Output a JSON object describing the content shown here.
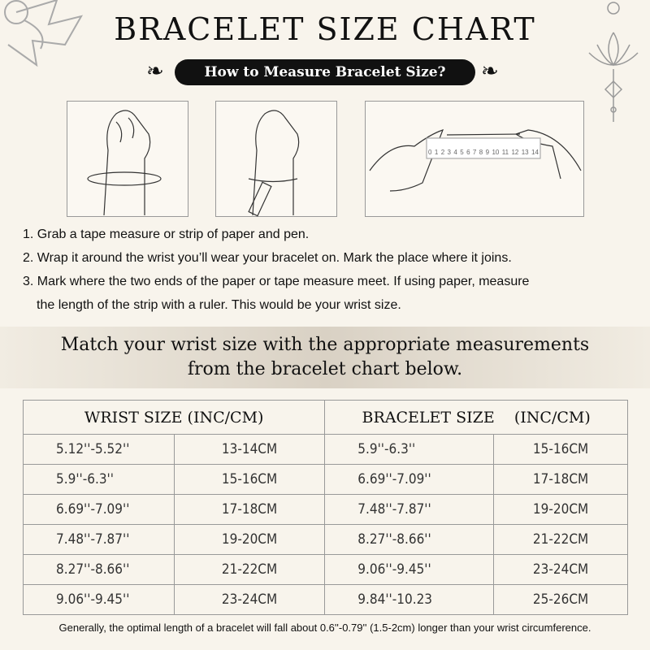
{
  "title": "BRACELET SIZE CHART",
  "subtitle": "How to Measure Bracelet Size?",
  "ruler_labels": [
    "0",
    "1",
    "2",
    "3",
    "4",
    "5",
    "6",
    "7",
    "8",
    "9",
    "10",
    "11",
    "12",
    "13",
    "14"
  ],
  "steps": [
    "1. Grab a tape measure or strip of paper and pen.",
    "2. Wrap it around the wrist you’ll wear your bracelet on. Mark the place where it joins.",
    "3. Mark where the two ends of the paper or tape measure meet. If using paper, measure",
    "the length of the strip with a ruler. This would be your wrist size."
  ],
  "band": [
    "Match your wrist size with the appropriate measurements",
    "from the bracelet chart below."
  ],
  "table": {
    "headers": [
      "WRIST SIZE (INC/CM)",
      "BRACELET SIZE    (INC/CM)"
    ],
    "rows": [
      [
        "5.12''-5.52''",
        "13-14CM",
        "5.9''-6.3''",
        "15-16CM"
      ],
      [
        "5.9''-6.3''",
        "15-16CM",
        "6.69''-7.09''",
        "17-18CM"
      ],
      [
        "6.69''-7.09''",
        "17-18CM",
        "7.48''-7.87''",
        "19-20CM"
      ],
      [
        "7.48''-7.87''",
        "19-20CM",
        "8.27''-8.66''",
        "21-22CM"
      ],
      [
        "8.27''-8.66''",
        "21-22CM",
        "9.06''-9.45''",
        "23-24CM"
      ],
      [
        "9.06''-9.45''",
        "23-24CM",
        "9.84''-10.23",
        "25-26CM"
      ]
    ]
  },
  "footnote": "Generally, the optimal length of a bracelet will fall about 0.6''-0.79'' (1.5-2cm) longer than your wrist circumference."
}
